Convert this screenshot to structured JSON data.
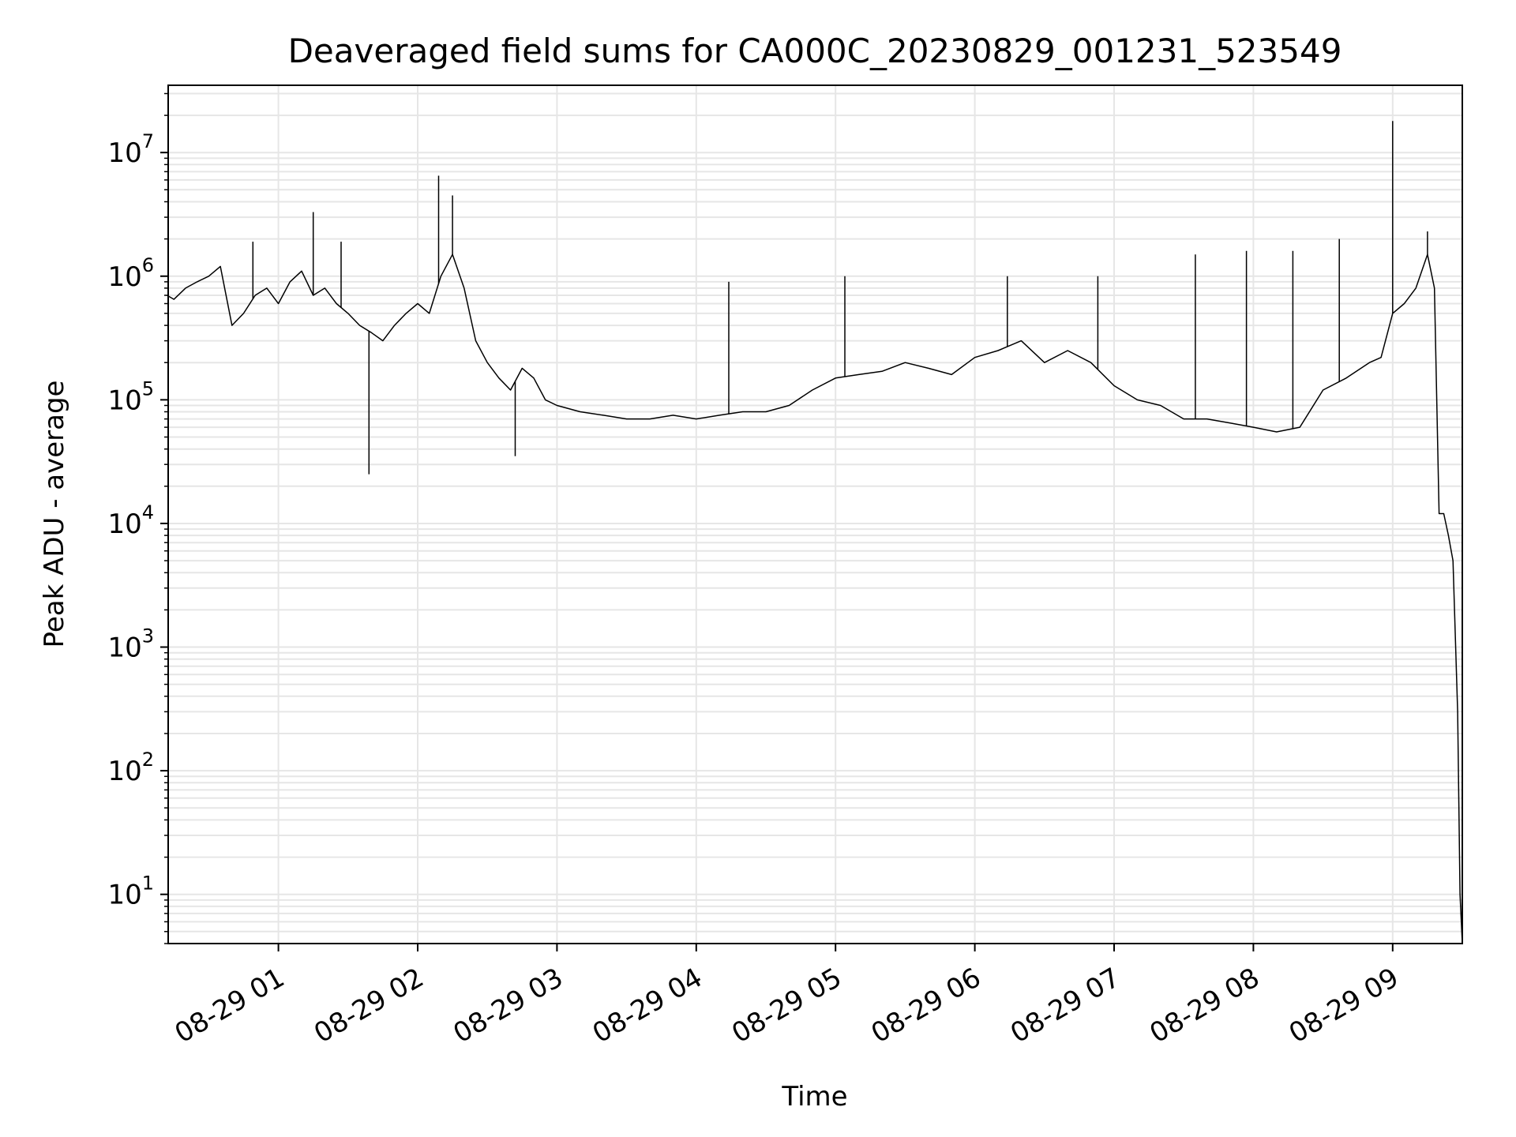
{
  "chart_data": {
    "type": "line",
    "title": "Deaveraged field sums for CA000C_20230829_001231_523549",
    "xlabel": "Time",
    "ylabel": "Peak ADU - average",
    "y_scale": "log",
    "ylim": [
      4,
      35000000
    ],
    "xlim": [
      "2023-08-29 00:12:31",
      "2023-08-29 09:30:00"
    ],
    "grid": true,
    "legend": "none",
    "x_ticks": [
      {
        "t": "2023-08-29 01:00",
        "label": "08-29 01"
      },
      {
        "t": "2023-08-29 02:00",
        "label": "08-29 02"
      },
      {
        "t": "2023-08-29 03:00",
        "label": "08-29 03"
      },
      {
        "t": "2023-08-29 04:00",
        "label": "08-29 04"
      },
      {
        "t": "2023-08-29 05:00",
        "label": "08-29 05"
      },
      {
        "t": "2023-08-29 06:00",
        "label": "08-29 06"
      },
      {
        "t": "2023-08-29 07:00",
        "label": "08-29 07"
      },
      {
        "t": "2023-08-29 08:00",
        "label": "08-29 08"
      },
      {
        "t": "2023-08-29 09:00",
        "label": "08-29 09"
      }
    ],
    "y_ticks": [
      {
        "value": 10,
        "exponent": "1"
      },
      {
        "value": 100,
        "exponent": "2"
      },
      {
        "value": 1000,
        "exponent": "3"
      },
      {
        "value": 10000,
        "exponent": "4"
      },
      {
        "value": 100000,
        "exponent": "5"
      },
      {
        "value": 1000000,
        "exponent": "6"
      },
      {
        "value": 10000000,
        "exponent": "7"
      }
    ],
    "y_tick_base": "10",
    "series": [
      {
        "color": "#000000",
        "x": [
          "2023-08-29 00:12",
          "2023-08-29 00:15",
          "2023-08-29 00:20",
          "2023-08-29 00:25",
          "2023-08-29 00:30",
          "2023-08-29 00:35",
          "2023-08-29 00:40",
          "2023-08-29 00:45",
          "2023-08-29 00:50",
          "2023-08-29 00:55",
          "2023-08-29 01:00",
          "2023-08-29 01:05",
          "2023-08-29 01:10",
          "2023-08-29 01:15",
          "2023-08-29 01:20",
          "2023-08-29 01:25",
          "2023-08-29 01:30",
          "2023-08-29 01:35",
          "2023-08-29 01:40",
          "2023-08-29 01:45",
          "2023-08-29 01:50",
          "2023-08-29 01:55",
          "2023-08-29 02:00",
          "2023-08-29 02:05",
          "2023-08-29 02:10",
          "2023-08-29 02:15",
          "2023-08-29 02:20",
          "2023-08-29 02:25",
          "2023-08-29 02:30",
          "2023-08-29 02:35",
          "2023-08-29 02:40",
          "2023-08-29 02:45",
          "2023-08-29 02:50",
          "2023-08-29 02:55",
          "2023-08-29 03:00",
          "2023-08-29 03:10",
          "2023-08-29 03:20",
          "2023-08-29 03:30",
          "2023-08-29 03:40",
          "2023-08-29 03:50",
          "2023-08-29 04:00",
          "2023-08-29 04:10",
          "2023-08-29 04:20",
          "2023-08-29 04:30",
          "2023-08-29 04:40",
          "2023-08-29 04:50",
          "2023-08-29 05:00",
          "2023-08-29 05:10",
          "2023-08-29 05:20",
          "2023-08-29 05:30",
          "2023-08-29 05:40",
          "2023-08-29 05:50",
          "2023-08-29 06:00",
          "2023-08-29 06:10",
          "2023-08-29 06:20",
          "2023-08-29 06:30",
          "2023-08-29 06:40",
          "2023-08-29 06:50",
          "2023-08-29 07:00",
          "2023-08-29 07:10",
          "2023-08-29 07:20",
          "2023-08-29 07:30",
          "2023-08-29 07:40",
          "2023-08-29 07:50",
          "2023-08-29 08:00",
          "2023-08-29 08:10",
          "2023-08-29 08:20",
          "2023-08-29 08:30",
          "2023-08-29 08:40",
          "2023-08-29 08:50",
          "2023-08-29 08:55",
          "2023-08-29 09:00",
          "2023-08-29 09:05",
          "2023-08-29 09:10",
          "2023-08-29 09:15",
          "2023-08-29 09:18",
          "2023-08-29 09:20",
          "2023-08-29 09:22",
          "2023-08-29 09:24",
          "2023-08-29 09:26",
          "2023-08-29 09:28",
          "2023-08-29 09:29",
          "2023-08-29 09:30"
        ],
        "y": [
          700000,
          650000,
          800000,
          900000,
          1000000,
          1200000,
          400000,
          500000,
          700000,
          800000,
          600000,
          900000,
          1100000,
          700000,
          800000,
          600000,
          500000,
          400000,
          350000,
          300000,
          400000,
          500000,
          600000,
          500000,
          1000000,
          1500000,
          800000,
          300000,
          200000,
          150000,
          120000,
          180000,
          150000,
          100000,
          90000,
          80000,
          75000,
          70000,
          70000,
          75000,
          70000,
          75000,
          80000,
          80000,
          90000,
          120000,
          150000,
          160000,
          170000,
          200000,
          180000,
          160000,
          220000,
          250000,
          300000,
          200000,
          250000,
          200000,
          130000,
          100000,
          90000,
          70000,
          70000,
          65000,
          60000,
          55000,
          60000,
          120000,
          150000,
          200000,
          220000,
          500000,
          600000,
          800000,
          1500000,
          800000,
          12000,
          12000,
          8000,
          5000,
          300,
          10,
          4
        ],
        "spikes": [
          {
            "t": "2023-08-29 00:49",
            "value": 1900000
          },
          {
            "t": "2023-08-29 01:15",
            "value": 3300000
          },
          {
            "t": "2023-08-29 01:27",
            "value": 1900000
          },
          {
            "t": "2023-08-29 01:39",
            "value": 25000
          },
          {
            "t": "2023-08-29 02:09",
            "value": 6500000
          },
          {
            "t": "2023-08-29 02:15",
            "value": 4500000
          },
          {
            "t": "2023-08-29 02:42",
            "value": 35000
          },
          {
            "t": "2023-08-29 04:14",
            "value": 900000
          },
          {
            "t": "2023-08-29 05:04",
            "value": 1000000
          },
          {
            "t": "2023-08-29 06:14",
            "value": 1000000
          },
          {
            "t": "2023-08-29 06:53",
            "value": 1000000
          },
          {
            "t": "2023-08-29 07:35",
            "value": 1500000
          },
          {
            "t": "2023-08-29 07:57",
            "value": 1600000
          },
          {
            "t": "2023-08-29 08:17",
            "value": 1600000
          },
          {
            "t": "2023-08-29 08:37",
            "value": 2000000
          },
          {
            "t": "2023-08-29 09:00",
            "value": 18000000
          },
          {
            "t": "2023-08-29 09:15",
            "value": 2300000
          }
        ]
      }
    ]
  }
}
